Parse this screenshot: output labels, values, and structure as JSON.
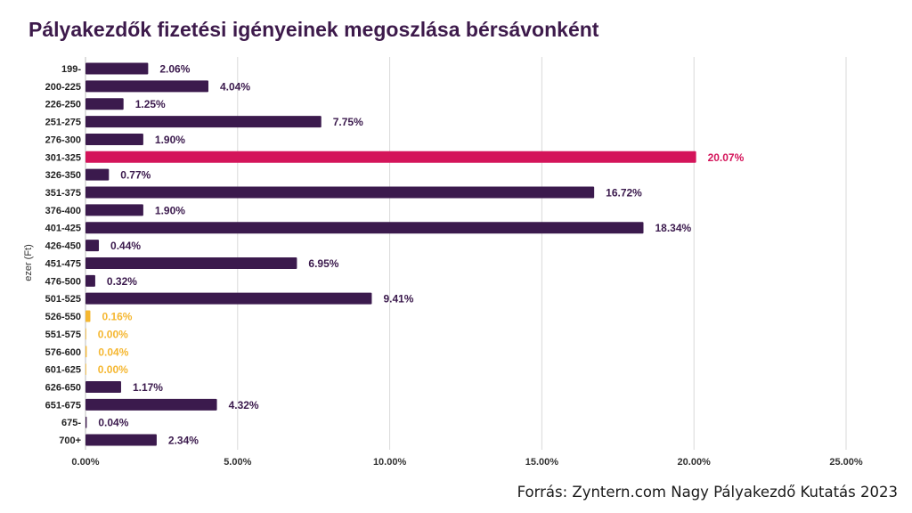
{
  "chart_data": {
    "type": "bar",
    "orientation": "horizontal",
    "title": "Pályakezdők fizetési igényeinek megoszlása bérsávonként",
    "ylabel": "ezer (Ft)",
    "xlabel": "",
    "xlim": [
      0,
      25
    ],
    "x_ticks": [
      "0.00%",
      "5.00%",
      "10.00%",
      "15.00%",
      "20.00%",
      "25.00%"
    ],
    "grid": "vertical",
    "legend": "none",
    "categories": [
      "199-",
      "200-225",
      "226-250",
      "251-275",
      "276-300",
      "301-325",
      "326-350",
      "351-375",
      "376-400",
      "401-425",
      "426-450",
      "451-475",
      "476-500",
      "501-525",
      "526-550",
      "551-575",
      "576-600",
      "601-625",
      "626-650",
      "651-675",
      "675-",
      "700+"
    ],
    "values": [
      2.06,
      4.04,
      1.25,
      7.75,
      1.9,
      20.07,
      0.77,
      16.72,
      1.9,
      18.34,
      0.44,
      6.95,
      0.32,
      9.41,
      0.16,
      0.0,
      0.04,
      0.0,
      1.17,
      4.32,
      0.04,
      2.34
    ],
    "labels": [
      "2.06%",
      "4.04%",
      "1.25%",
      "7.75%",
      "1.90%",
      "20.07%",
      "0.77%",
      "16.72%",
      "1.90%",
      "18.34%",
      "0.44%",
      "6.95%",
      "0.32%",
      "9.41%",
      "0.16%",
      "0.00%",
      "0.04%",
      "0.00%",
      "1.17%",
      "4.32%",
      "0.04%",
      "2.34%"
    ],
    "bar_colors": [
      "#3b1a4d",
      "#3b1a4d",
      "#3b1a4d",
      "#3b1a4d",
      "#3b1a4d",
      "#d4145a",
      "#3b1a4d",
      "#3b1a4d",
      "#3b1a4d",
      "#3b1a4d",
      "#3b1a4d",
      "#3b1a4d",
      "#3b1a4d",
      "#3b1a4d",
      "#f5b731",
      "#f5b731",
      "#f5b731",
      "#f5b731",
      "#3b1a4d",
      "#3b1a4d",
      "#3b1a4d",
      "#3b1a4d"
    ],
    "colors": {
      "default": "#3b1a4d",
      "highlight": "#d4145a",
      "small": "#f5b731"
    }
  },
  "footer": {
    "source": "Forrás: Zyntern.com Nagy Pályakezdő Kutatás 2023"
  }
}
